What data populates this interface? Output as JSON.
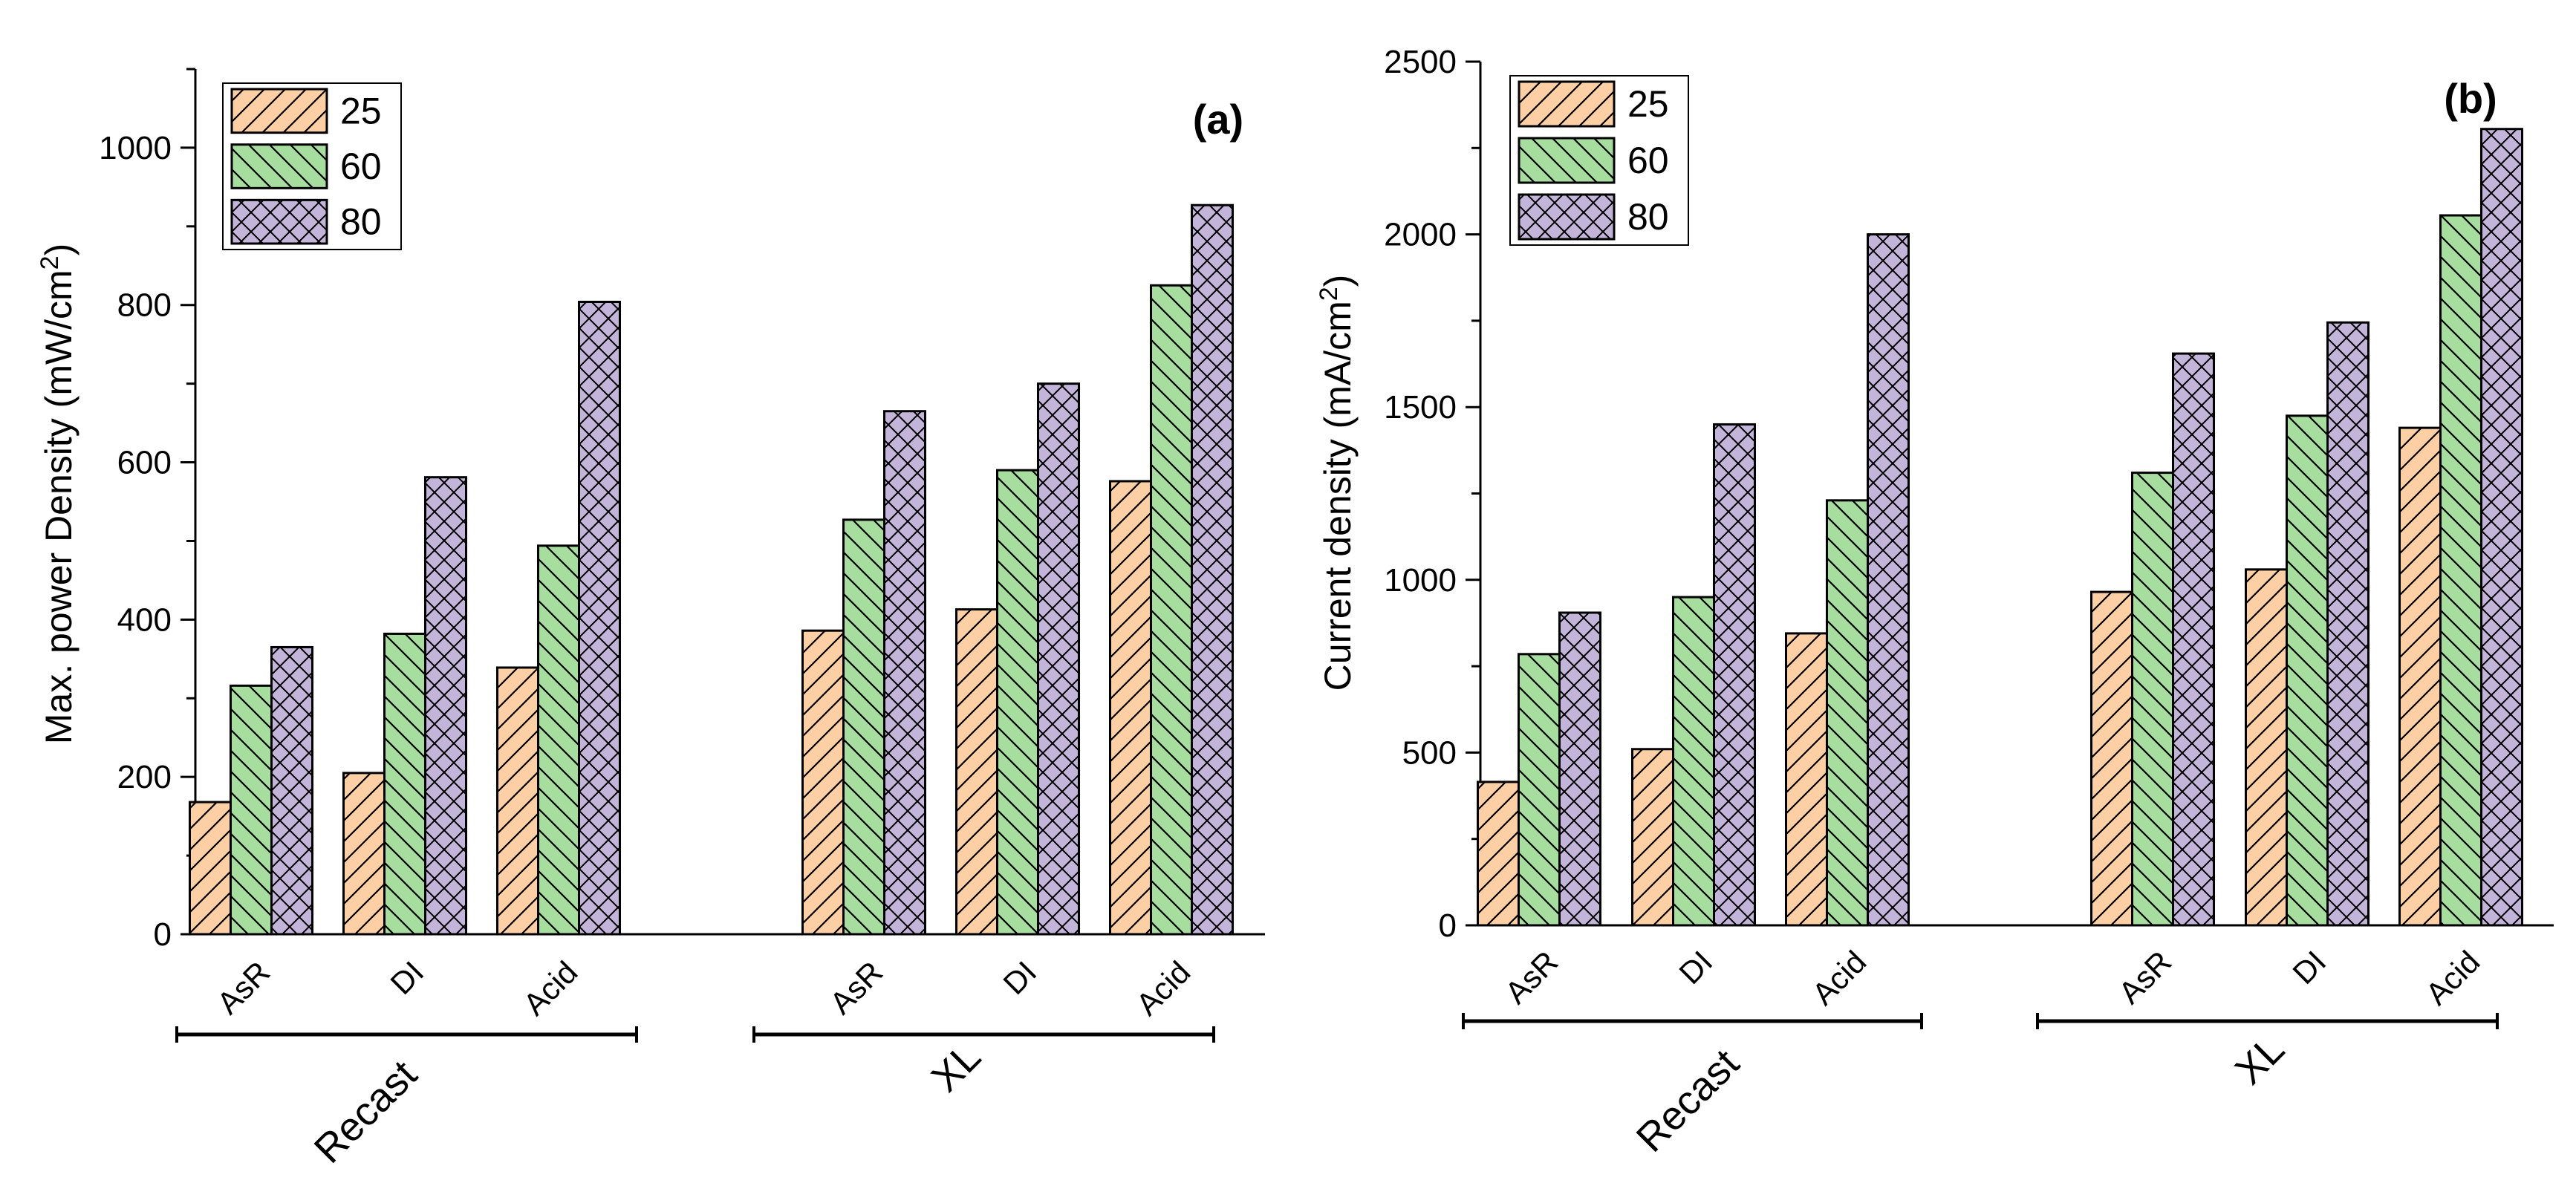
{
  "chart_data": [
    {
      "type": "bar",
      "panel_label": "(a)",
      "ylabel": "Max. power Density (mW/cm²)",
      "ylim": [
        0,
        1100
      ],
      "yticks": [
        0,
        200,
        400,
        600,
        800,
        1000
      ],
      "groups": [
        {
          "label": "Recast",
          "categories": [
            "AsR",
            "DI",
            "Acid"
          ]
        },
        {
          "label": "XL",
          "categories": [
            "AsR",
            "DI",
            "Acid"
          ]
        }
      ],
      "categories": [
        "AsR",
        "DI",
        "Acid",
        "AsR",
        "DI",
        "Acid"
      ],
      "series": [
        {
          "name": "25",
          "values": [
            168,
            205,
            339,
            386,
            413,
            576
          ]
        },
        {
          "name": "60",
          "values": [
            316,
            382,
            494,
            527,
            590,
            825
          ]
        },
        {
          "name": "80",
          "values": [
            365,
            581,
            804,
            665,
            700,
            927
          ]
        }
      ],
      "legend_position": "top-left"
    },
    {
      "type": "bar",
      "panel_label": "(b)",
      "ylabel": "Current density (mA/cm²)",
      "ylim": [
        0,
        2500
      ],
      "yticks": [
        0,
        500,
        1000,
        1500,
        2000,
        2500
      ],
      "groups": [
        {
          "label": "Recast",
          "categories": [
            "AsR",
            "DI",
            "Acid"
          ]
        },
        {
          "label": "XL",
          "categories": [
            "AsR",
            "DI",
            "Acid"
          ]
        }
      ],
      "categories": [
        "AsR",
        "DI",
        "Acid",
        "AsR",
        "DI",
        "Acid"
      ],
      "series": [
        {
          "name": "25",
          "values": [
            415,
            510,
            845,
            965,
            1030,
            1440
          ]
        },
        {
          "name": "60",
          "values": [
            785,
            950,
            1230,
            1310,
            1475,
            2055
          ]
        },
        {
          "name": "80",
          "values": [
            905,
            1450,
            2000,
            1655,
            1745,
            2305
          ]
        }
      ],
      "legend_position": "top-left"
    }
  ],
  "series_style": [
    {
      "fill": "#FDCFA5",
      "pattern": "diagonal-right"
    },
    {
      "fill": "#A8DDA0",
      "pattern": "diagonal-left"
    },
    {
      "fill": "#C3B5D9",
      "pattern": "crosshatch"
    }
  ]
}
